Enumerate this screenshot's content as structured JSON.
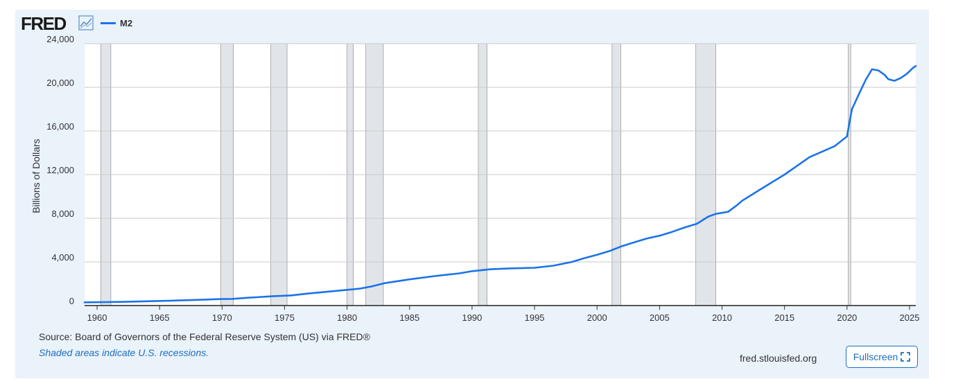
{
  "brand": {
    "logo_text": "FRED",
    "logo_icon": "line-chart-icon"
  },
  "legend": {
    "series_label": "M2",
    "color": "#1a73e8"
  },
  "chart_data": {
    "type": "line",
    "ylabel": "Billions of Dollars",
    "xlim": [
      1959,
      2025.5
    ],
    "ylim": [
      0,
      24000
    ],
    "grid": true,
    "legend_position": "top-left",
    "x_ticks": [
      1960,
      1965,
      1970,
      1975,
      1980,
      1985,
      1990,
      1995,
      2000,
      2005,
      2010,
      2015,
      2020,
      2025
    ],
    "y_ticks": [
      {
        "value": 0,
        "label": "0"
      },
      {
        "value": 4000,
        "label": "4,000"
      },
      {
        "value": 8000,
        "label": "8,000"
      },
      {
        "value": 12000,
        "label": "12,000"
      },
      {
        "value": 16000,
        "label": "16,000"
      },
      {
        "value": 20000,
        "label": "20,000"
      },
      {
        "value": 24000,
        "label": "24,000"
      }
    ],
    "recessions": [
      [
        1960.3,
        1961.1
      ],
      [
        1969.9,
        1970.9
      ],
      [
        1973.9,
        1975.2
      ],
      [
        1980.0,
        1980.5
      ],
      [
        1981.5,
        1982.9
      ],
      [
        1990.5,
        1991.2
      ],
      [
        2001.2,
        2001.9
      ],
      [
        2007.9,
        2009.5
      ],
      [
        2020.1,
        2020.3
      ]
    ],
    "series": [
      {
        "name": "M2",
        "color": "#1a73e8",
        "points": [
          [
            1959.0,
            290
          ],
          [
            1960.0,
            305
          ],
          [
            1962.0,
            335
          ],
          [
            1964.0,
            395
          ],
          [
            1966.0,
            450
          ],
          [
            1968.0,
            520
          ],
          [
            1970.0,
            600
          ],
          [
            1970.8,
            610
          ],
          [
            1972.0,
            710
          ],
          [
            1974.0,
            850
          ],
          [
            1975.5,
            930
          ],
          [
            1977.0,
            1120
          ],
          [
            1979.0,
            1330
          ],
          [
            1981.0,
            1550
          ],
          [
            1982.0,
            1760
          ],
          [
            1983.0,
            2050
          ],
          [
            1985.0,
            2400
          ],
          [
            1987.0,
            2700
          ],
          [
            1989.0,
            2950
          ],
          [
            1990.0,
            3150
          ],
          [
            1991.5,
            3330
          ],
          [
            1993.0,
            3400
          ],
          [
            1995.0,
            3460
          ],
          [
            1996.5,
            3650
          ],
          [
            1998.0,
            4000
          ],
          [
            1999.0,
            4350
          ],
          [
            2000.0,
            4650
          ],
          [
            2001.0,
            5000
          ],
          [
            2002.0,
            5450
          ],
          [
            2003.0,
            5800
          ],
          [
            2004.0,
            6150
          ],
          [
            2005.0,
            6400
          ],
          [
            2006.0,
            6750
          ],
          [
            2007.0,
            7150
          ],
          [
            2008.0,
            7500
          ],
          [
            2008.9,
            8150
          ],
          [
            2009.5,
            8400
          ],
          [
            2010.5,
            8600
          ],
          [
            2011.2,
            9200
          ],
          [
            2011.6,
            9600
          ],
          [
            2013.0,
            10600
          ],
          [
            2014.0,
            11300
          ],
          [
            2015.0,
            12000
          ],
          [
            2016.0,
            12800
          ],
          [
            2017.0,
            13600
          ],
          [
            2018.0,
            14100
          ],
          [
            2019.0,
            14600
          ],
          [
            2020.0,
            15500
          ],
          [
            2020.2,
            16800
          ],
          [
            2020.4,
            18000
          ],
          [
            2021.0,
            19500
          ],
          [
            2021.5,
            20700
          ],
          [
            2022.0,
            21650
          ],
          [
            2022.5,
            21550
          ],
          [
            2023.0,
            21150
          ],
          [
            2023.3,
            20750
          ],
          [
            2023.8,
            20600
          ],
          [
            2024.3,
            20850
          ],
          [
            2024.8,
            21250
          ],
          [
            2025.3,
            21800
          ],
          [
            2025.5,
            21950
          ]
        ]
      }
    ]
  },
  "footer": {
    "source": "Source: Board of Governors of the Federal Reserve System (US) via FRED®",
    "note": "Shaded areas indicate U.S. recessions.",
    "credit": "fred.stlouisfed.org",
    "fullscreen_label": "Fullscreen"
  }
}
